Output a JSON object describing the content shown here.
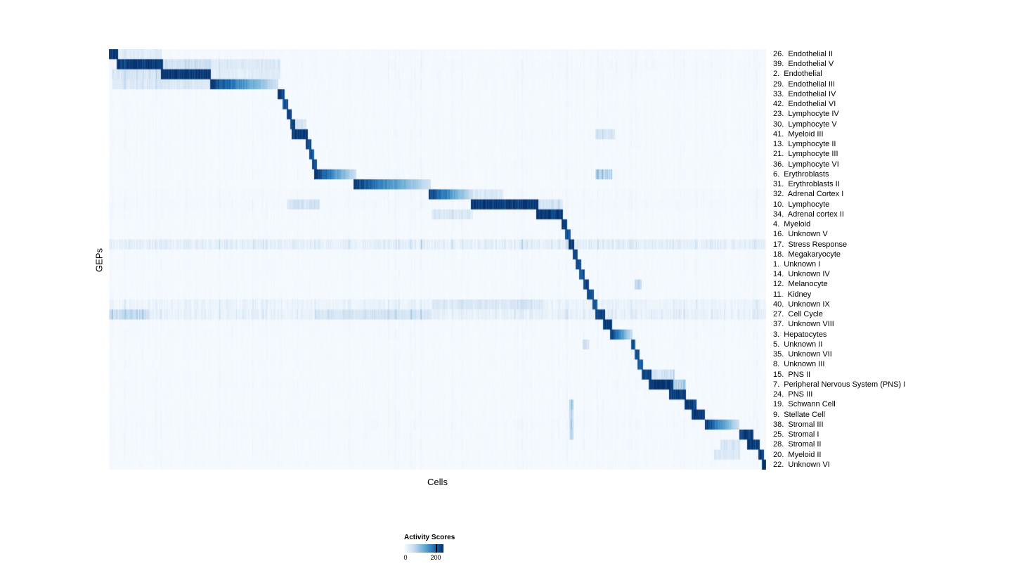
{
  "figure": {
    "y_axis_label": "GEPs",
    "x_axis_label": "Cells",
    "legend": {
      "title": "Activity Scores",
      "min_label": "0",
      "max_label": "200"
    }
  },
  "chart_data": {
    "type": "heatmap",
    "title": "",
    "xlabel": "Cells",
    "ylabel": "GEPs",
    "legend_title": "Activity Scores",
    "colorscale": {
      "name": "Blues",
      "min": 0,
      "max": 200,
      "stops": [
        "#f7fbff",
        "#c6dbef",
        "#6baed6",
        "#2171b5",
        "#08306b"
      ]
    },
    "rows": [
      {
        "label": "26.  Endothelial II",
        "block": [
          0.0,
          0.013
        ],
        "peak": 1.0,
        "fade": false,
        "bg": 0.06,
        "extra": [
          [
            0.013,
            0.08,
            0.2
          ]
        ]
      },
      {
        "label": "39.  Endothelial V",
        "block": [
          0.012,
          0.082
        ],
        "peak": 1.0,
        "fade": false,
        "bg": 0.08,
        "extra": [
          [
            0.082,
            0.155,
            0.35
          ],
          [
            0.155,
            0.26,
            0.22
          ]
        ]
      },
      {
        "label": "2.  Endothelial",
        "block": [
          0.08,
          0.155
        ],
        "peak": 1.0,
        "fade": false,
        "bg": 0.07,
        "extra": [
          [
            0.005,
            0.08,
            0.3
          ],
          [
            0.155,
            0.26,
            0.18
          ]
        ]
      },
      {
        "label": "29.  Endothelial III",
        "block": [
          0.155,
          0.257
        ],
        "peak": 1.0,
        "fade": true,
        "bg": 0.07,
        "extra": [
          [
            0.005,
            0.155,
            0.25
          ]
        ]
      },
      {
        "label": "33.  Endothelial IV",
        "block": [
          0.257,
          0.267
        ],
        "peak": 0.95,
        "fade": false,
        "bg": 0.05,
        "extra": []
      },
      {
        "label": "42.  Endothelial VI",
        "block": [
          0.265,
          0.272
        ],
        "peak": 0.9,
        "fade": false,
        "bg": 0.05,
        "extra": []
      },
      {
        "label": "23.  Lymphocyte IV",
        "block": [
          0.271,
          0.278
        ],
        "peak": 0.95,
        "fade": false,
        "bg": 0.05,
        "extra": []
      },
      {
        "label": "30.  Lymphocyte V",
        "block": [
          0.276,
          0.283
        ],
        "peak": 0.9,
        "fade": false,
        "bg": 0.05,
        "extra": [
          [
            0.283,
            0.3,
            0.3
          ]
        ]
      },
      {
        "label": "41.  Myeloid III",
        "block": [
          0.279,
          0.302
        ],
        "peak": 1.0,
        "fade": false,
        "bg": 0.06,
        "extra": [
          [
            0.74,
            0.77,
            0.25
          ]
        ]
      },
      {
        "label": "13.  Lymphocyte II",
        "block": [
          0.3,
          0.307
        ],
        "peak": 0.95,
        "fade": false,
        "bg": 0.05,
        "extra": []
      },
      {
        "label": "21.  Lymphocyte III",
        "block": [
          0.305,
          0.312
        ],
        "peak": 0.9,
        "fade": false,
        "bg": 0.05,
        "extra": []
      },
      {
        "label": "36.  Lymphocyte VI",
        "block": [
          0.31,
          0.316
        ],
        "peak": 0.9,
        "fade": false,
        "bg": 0.05,
        "extra": []
      },
      {
        "label": "6.  Erythroblasts",
        "block": [
          0.313,
          0.376
        ],
        "peak": 1.0,
        "fade": true,
        "bg": 0.05,
        "extra": [
          [
            0.74,
            0.765,
            0.45
          ]
        ]
      },
      {
        "label": "31.  Erythroblasts II",
        "block": [
          0.373,
          0.489
        ],
        "peak": 1.0,
        "fade": true,
        "bg": 0.04,
        "extra": []
      },
      {
        "label": "32.  Adrenal Cortex I",
        "block": [
          0.487,
          0.553
        ],
        "peak": 1.0,
        "fade": true,
        "bg": 0.07,
        "extra": [
          [
            0.553,
            0.6,
            0.25
          ]
        ]
      },
      {
        "label": "10.  Lymphocyte",
        "block": [
          0.551,
          0.653
        ],
        "peak": 1.0,
        "fade": false,
        "bg": 0.08,
        "extra": [
          [
            0.27,
            0.32,
            0.3
          ],
          [
            0.653,
            0.69,
            0.3
          ]
        ]
      },
      {
        "label": "34.  Adrenal cortex II",
        "block": [
          0.651,
          0.69
        ],
        "peak": 1.0,
        "fade": false,
        "bg": 0.06,
        "extra": [
          [
            0.49,
            0.553,
            0.25
          ]
        ]
      },
      {
        "label": "4.  Myeloid",
        "block": [
          0.689,
          0.697
        ],
        "peak": 0.95,
        "fade": false,
        "bg": 0.05,
        "extra": []
      },
      {
        "label": "16.  Unknown V",
        "block": [
          0.695,
          0.702
        ],
        "peak": 0.9,
        "fade": false,
        "bg": 0.05,
        "extra": []
      },
      {
        "label": "17.  Stress Response",
        "block": [
          0.7,
          0.708
        ],
        "peak": 1.0,
        "fade": false,
        "bg": 0.35,
        "extra": []
      },
      {
        "label": "18.  Megakaryocyte",
        "block": [
          0.706,
          0.713
        ],
        "peak": 0.9,
        "fade": false,
        "bg": 0.05,
        "extra": []
      },
      {
        "label": "1.  Unknown I",
        "block": [
          0.711,
          0.718
        ],
        "peak": 0.9,
        "fade": false,
        "bg": 0.06,
        "extra": []
      },
      {
        "label": "14.  Unknown IV",
        "block": [
          0.716,
          0.723
        ],
        "peak": 0.9,
        "fade": false,
        "bg": 0.05,
        "extra": []
      },
      {
        "label": "12.  Melanocyte",
        "block": [
          0.722,
          0.73
        ],
        "peak": 0.95,
        "fade": false,
        "bg": 0.05,
        "extra": [
          [
            0.8,
            0.81,
            0.4
          ]
        ]
      },
      {
        "label": "11.  Kidney",
        "block": [
          0.728,
          0.737
        ],
        "peak": 0.95,
        "fade": false,
        "bg": 0.05,
        "extra": []
      },
      {
        "label": "40.  Unknown IX",
        "block": [
          0.736,
          0.743
        ],
        "peak": 0.9,
        "fade": false,
        "bg": 0.22,
        "extra": [
          [
            0.49,
            0.66,
            0.25
          ]
        ]
      },
      {
        "label": "27.  Cell Cycle",
        "block": [
          0.741,
          0.755
        ],
        "peak": 1.0,
        "fade": false,
        "bg": 0.3,
        "extra": [
          [
            0.0,
            0.06,
            0.4
          ],
          [
            0.313,
            0.49,
            0.3
          ]
        ]
      },
      {
        "label": "37.  Unknown VIII",
        "block": [
          0.752,
          0.765
        ],
        "peak": 1.0,
        "fade": false,
        "bg": 0.06,
        "extra": []
      },
      {
        "label": "3.  Hepatocytes",
        "block": [
          0.763,
          0.796
        ],
        "peak": 1.0,
        "fade": true,
        "bg": 0.06,
        "extra": []
      },
      {
        "label": "5.  Unknown II",
        "block": [
          0.795,
          0.801
        ],
        "peak": 0.9,
        "fade": false,
        "bg": 0.05,
        "extra": [
          [
            0.72,
            0.73,
            0.35
          ]
        ]
      },
      {
        "label": "35.  Unknown VII",
        "block": [
          0.8,
          0.807
        ],
        "peak": 0.9,
        "fade": false,
        "bg": 0.05,
        "extra": []
      },
      {
        "label": "8.  Unknown III",
        "block": [
          0.805,
          0.812
        ],
        "peak": 0.9,
        "fade": false,
        "bg": 0.05,
        "extra": []
      },
      {
        "label": "15.  PNS II",
        "block": [
          0.811,
          0.825
        ],
        "peak": 0.95,
        "fade": false,
        "bg": 0.05,
        "extra": [
          [
            0.825,
            0.86,
            0.3
          ]
        ]
      },
      {
        "label": "7.  Peripheral Nervous System (PNS) I",
        "block": [
          0.822,
          0.858
        ],
        "peak": 1.0,
        "fade": false,
        "bg": 0.06,
        "extra": [
          [
            0.858,
            0.878,
            0.45
          ]
        ]
      },
      {
        "label": "24.  PNS III",
        "block": [
          0.853,
          0.878
        ],
        "peak": 1.0,
        "fade": false,
        "bg": 0.05,
        "extra": []
      },
      {
        "label": "19.  Schwann Cell",
        "block": [
          0.876,
          0.894
        ],
        "peak": 1.0,
        "fade": false,
        "bg": 0.05,
        "extra": [
          [
            0.7,
            0.706,
            0.5
          ]
        ]
      },
      {
        "label": "9.  Stellate Cell",
        "block": [
          0.887,
          0.906
        ],
        "peak": 1.0,
        "fade": false,
        "bg": 0.06,
        "extra": [
          [
            0.7,
            0.706,
            0.4
          ]
        ]
      },
      {
        "label": "38.  Stromal III",
        "block": [
          0.908,
          0.959
        ],
        "peak": 1.0,
        "fade": true,
        "bg": 0.07,
        "extra": [
          [
            0.7,
            0.706,
            0.5
          ]
        ]
      },
      {
        "label": "25.  Stromal I",
        "block": [
          0.96,
          0.98
        ],
        "peak": 1.0,
        "fade": false,
        "bg": 0.06,
        "extra": [
          [
            0.7,
            0.706,
            0.4
          ]
        ]
      },
      {
        "label": "28.  Stromal II",
        "block": [
          0.972,
          0.99
        ],
        "peak": 1.0,
        "fade": false,
        "bg": 0.06,
        "extra": [
          [
            0.93,
            0.96,
            0.3
          ]
        ]
      },
      {
        "label": "20.  Myeloid II",
        "block": [
          0.989,
          0.996
        ],
        "peak": 0.95,
        "fade": false,
        "bg": 0.05,
        "extra": [
          [
            0.92,
            0.96,
            0.25
          ]
        ]
      },
      {
        "label": "22.  Unknown VI",
        "block": [
          0.994,
          1.0
        ],
        "peak": 1.0,
        "fade": false,
        "bg": 0.05,
        "extra": []
      }
    ]
  }
}
